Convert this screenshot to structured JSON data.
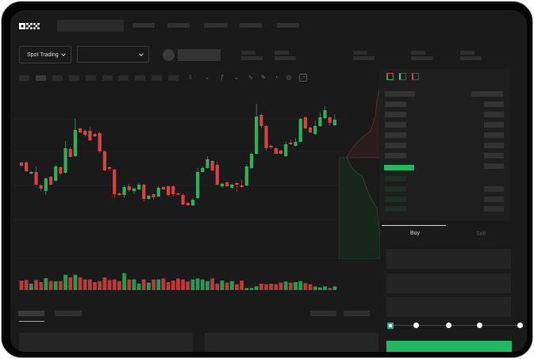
{
  "header": {
    "logo": "OKX"
  },
  "controls": {
    "market_selector": "Spot Trading"
  },
  "trade": {
    "buy_tab": "Buy",
    "sell_tab": "Sell",
    "leverage_steps": 5,
    "selected_step": 0
  },
  "colors": {
    "up": "#26b35a",
    "down": "#d9403f",
    "background": "#1a1a1a",
    "accent": "#22b860"
  },
  "chart_data": {
    "type": "candlestick",
    "candles": [
      [
        67,
        63,
        68,
        62
      ],
      [
        67,
        56,
        69,
        55
      ],
      [
        53,
        55,
        56,
        52
      ],
      [
        55,
        39,
        62,
        38
      ],
      [
        38,
        34,
        39,
        31
      ],
      [
        31,
        47,
        48,
        26
      ],
      [
        49,
        39,
        50,
        38
      ],
      [
        44,
        62,
        64,
        43
      ],
      [
        61,
        53,
        62,
        51
      ],
      [
        54,
        85,
        94,
        53
      ],
      [
        84,
        74,
        87,
        73
      ],
      [
        75,
        108,
        122,
        74
      ],
      [
        110,
        105,
        111,
        104
      ],
      [
        107,
        102,
        109,
        100
      ],
      [
        107,
        95,
        112,
        94
      ],
      [
        103,
        100,
        104,
        99
      ],
      [
        104,
        81,
        106,
        79
      ],
      [
        81,
        57,
        82,
        56
      ],
      [
        61,
        59,
        62,
        56
      ],
      [
        58,
        27,
        59,
        23
      ],
      [
        28,
        26,
        29,
        25
      ],
      [
        26,
        36,
        38,
        23
      ],
      [
        37,
        32,
        40,
        30
      ],
      [
        31,
        34,
        36,
        27
      ],
      [
        33,
        39,
        41,
        32
      ],
      [
        39,
        21,
        40,
        18
      ],
      [
        21,
        25,
        26,
        20
      ],
      [
        27,
        23,
        28,
        20
      ],
      [
        24,
        35,
        37,
        23
      ],
      [
        36,
        33,
        37,
        32
      ],
      [
        37,
        26,
        38,
        24
      ],
      [
        37,
        27,
        38,
        24
      ],
      [
        28,
        27,
        29,
        26
      ],
      [
        26,
        14,
        28,
        13
      ],
      [
        16,
        13,
        17,
        12
      ],
      [
        13,
        20,
        22,
        12
      ],
      [
        22,
        55,
        60,
        21
      ],
      [
        55,
        60,
        62,
        54
      ],
      [
        60,
        71,
        75,
        59
      ],
      [
        69,
        57,
        70,
        56
      ],
      [
        64,
        39,
        68,
        38
      ],
      [
        37,
        40,
        42,
        35
      ],
      [
        42,
        37,
        43,
        36
      ],
      [
        35,
        39,
        40,
        34
      ],
      [
        41,
        39,
        42,
        30
      ],
      [
        38,
        36,
        45,
        35
      ],
      [
        38,
        62,
        65,
        37
      ],
      [
        60,
        78,
        80,
        59
      ],
      [
        78,
        125,
        141,
        77
      ],
      [
        127,
        113,
        129,
        110
      ],
      [
        113,
        85,
        114,
        82
      ],
      [
        88,
        86,
        89,
        84
      ],
      [
        85,
        78,
        86,
        77
      ],
      [
        82,
        78,
        83,
        77
      ],
      [
        75,
        90,
        93,
        74
      ],
      [
        92,
        90,
        96,
        89
      ],
      [
        88,
        93,
        98,
        87
      ],
      [
        93,
        122,
        123,
        92
      ],
      [
        124,
        110,
        125,
        109
      ],
      [
        111,
        105,
        112,
        104
      ],
      [
        103,
        113,
        120,
        102
      ],
      [
        113,
        124,
        130,
        112
      ],
      [
        123,
        133,
        138,
        122
      ],
      [
        124,
        117,
        125,
        113
      ],
      [
        114,
        121,
        128,
        113
      ]
    ],
    "volume": [
      36,
      38,
      24,
      38,
      30,
      45,
      34,
      33,
      34,
      58,
      48,
      58,
      48,
      40,
      40,
      30,
      34,
      48,
      38,
      40,
      34,
      64,
      40,
      40,
      24,
      40,
      28,
      40,
      40,
      44,
      30,
      36,
      44,
      40,
      32,
      40,
      44,
      40,
      34,
      44,
      24,
      36,
      28,
      34,
      22,
      36,
      8,
      8,
      14,
      24,
      22,
      24,
      22,
      28,
      32,
      28,
      30,
      34,
      26,
      22,
      14,
      10,
      14,
      8,
      14
    ]
  }
}
